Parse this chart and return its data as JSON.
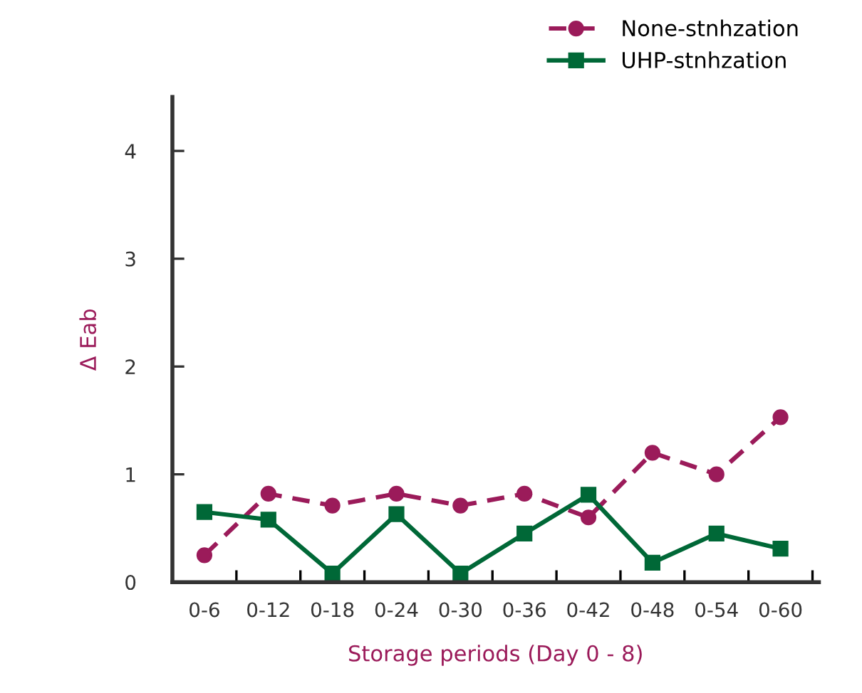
{
  "chart_data": {
    "type": "line",
    "xlabel": "Storage periods (Day 0 - 8)",
    "ylabel": "Δ Eab",
    "categories": [
      "0-6",
      "0-12",
      "0-18",
      "0-24",
      "0-30",
      "0-36",
      "0-42",
      "0-48",
      "0-54",
      "0-60"
    ],
    "series": [
      {
        "name": "None-stnhzation",
        "color": "#9b1b5a",
        "marker": "circle",
        "line_style": "dashed",
        "values": [
          0.25,
          0.82,
          0.71,
          0.82,
          0.71,
          0.82,
          0.6,
          1.2,
          1.0,
          1.53
        ]
      },
      {
        "name": "UHP-stnhzation",
        "color": "#006837",
        "marker": "square",
        "line_style": "solid",
        "values": [
          0.65,
          0.58,
          0.08,
          0.63,
          0.08,
          0.45,
          0.81,
          0.18,
          0.45,
          0.31
        ]
      }
    ],
    "ylim": [
      0,
      4.5
    ],
    "yticks": [
      0,
      1,
      2,
      3,
      4
    ],
    "grid": false,
    "legend": "top right"
  }
}
